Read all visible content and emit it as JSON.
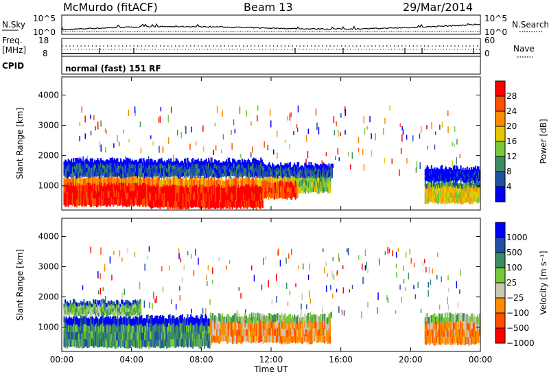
{
  "header": {
    "station": "McMurdo (fitACF)",
    "beam": "Beam 13",
    "date": "29/Mar/2014"
  },
  "top_panels": {
    "nsky_label": "N.Sky",
    "nsky_ticks": [
      "10^5",
      "10^0"
    ],
    "nsearch_label": "N.Search",
    "nsearch_ticks": [
      "10^5",
      "10^0"
    ],
    "freq_label": "Freq.",
    "freq_unit": "[MHz]",
    "freq_ticks": [
      "18",
      "8"
    ],
    "nave_ticks": [
      "60",
      "0"
    ],
    "nave_label": "Nave",
    "cpid_label": "CPID",
    "cpid_text": "normal (fast) 151 RF"
  },
  "chart_data": [
    {
      "type": "heatmap",
      "name": "power",
      "ylabel": "Slant Range [km]",
      "ylim": [
        200,
        4600
      ],
      "yticks": [
        "1000",
        "2000",
        "3000",
        "4000"
      ],
      "xlim": [
        0,
        24
      ],
      "xticks": [
        "00:00",
        "04:00",
        "08:00",
        "12:00",
        "16:00",
        "20:00",
        "00:00"
      ],
      "colorbar": {
        "label": "Power [dB]",
        "ticks": [
          "4",
          "8",
          "12",
          "16",
          "20",
          "24",
          "28"
        ],
        "colors": [
          "#0000ff",
          "#2050a0",
          "#3c8c64",
          "#78c83c",
          "#e6c800",
          "#ff8c00",
          "#ff5000",
          "#ff0000"
        ]
      },
      "regions": [
        {
          "t0": 0.1,
          "t1": 5.0,
          "r0": 350,
          "r1": 1300,
          "level": 7
        },
        {
          "t0": 5.0,
          "t1": 11.5,
          "r0": 280,
          "r1": 1250,
          "level": 7
        },
        {
          "t0": 11.5,
          "t1": 13.5,
          "r0": 600,
          "r1": 1350,
          "level": 6
        },
        {
          "t0": 13.5,
          "t1": 15.4,
          "r0": 800,
          "r1": 1500,
          "level": 3
        },
        {
          "t0": 20.8,
          "t1": 24.0,
          "r0": 450,
          "r1": 1150,
          "level": 4
        },
        {
          "t0": 0.1,
          "t1": 11.5,
          "r0": 1300,
          "r1": 1850,
          "level": 1
        },
        {
          "t0": 11.5,
          "t1": 15.5,
          "r0": 1300,
          "r1": 1700,
          "level": 1
        },
        {
          "t0": 20.8,
          "t1": 24.0,
          "r0": 1150,
          "r1": 1600,
          "level": 0
        }
      ]
    },
    {
      "type": "heatmap",
      "name": "velocity",
      "ylabel": "Slant Range [km]",
      "ylim": [
        200,
        4600
      ],
      "yticks": [
        "1000",
        "2000",
        "3000",
        "4000"
      ],
      "xlim": [
        0,
        24
      ],
      "xticks": [
        "00:00",
        "04:00",
        "08:00",
        "12:00",
        "16:00",
        "20:00",
        "00:00"
      ],
      "xlabel": "Time UT",
      "colorbar": {
        "label": "Velocity [m s⁻¹]",
        "ticks": [
          "1000",
          "500",
          "100",
          "25",
          "−25",
          "−100",
          "−500",
          "−1000"
        ],
        "colors": [
          "#0000ff",
          "#2050a0",
          "#3c8c64",
          "#78c83c",
          "#c8c8b4",
          "#ff8c00",
          "#ff5000",
          "#ff0000"
        ]
      },
      "regions": [
        {
          "t0": 0.1,
          "t1": 8.5,
          "r0": 350,
          "r1": 1350,
          "level": 2
        },
        {
          "t0": 8.5,
          "t1": 15.4,
          "r0": 500,
          "r1": 1400,
          "level": 5
        },
        {
          "t0": 20.8,
          "t1": 24.0,
          "r0": 450,
          "r1": 1400,
          "level": 5
        },
        {
          "t0": 0.1,
          "t1": 4.5,
          "r0": 1400,
          "r1": 1850,
          "level": 3
        }
      ]
    }
  ]
}
